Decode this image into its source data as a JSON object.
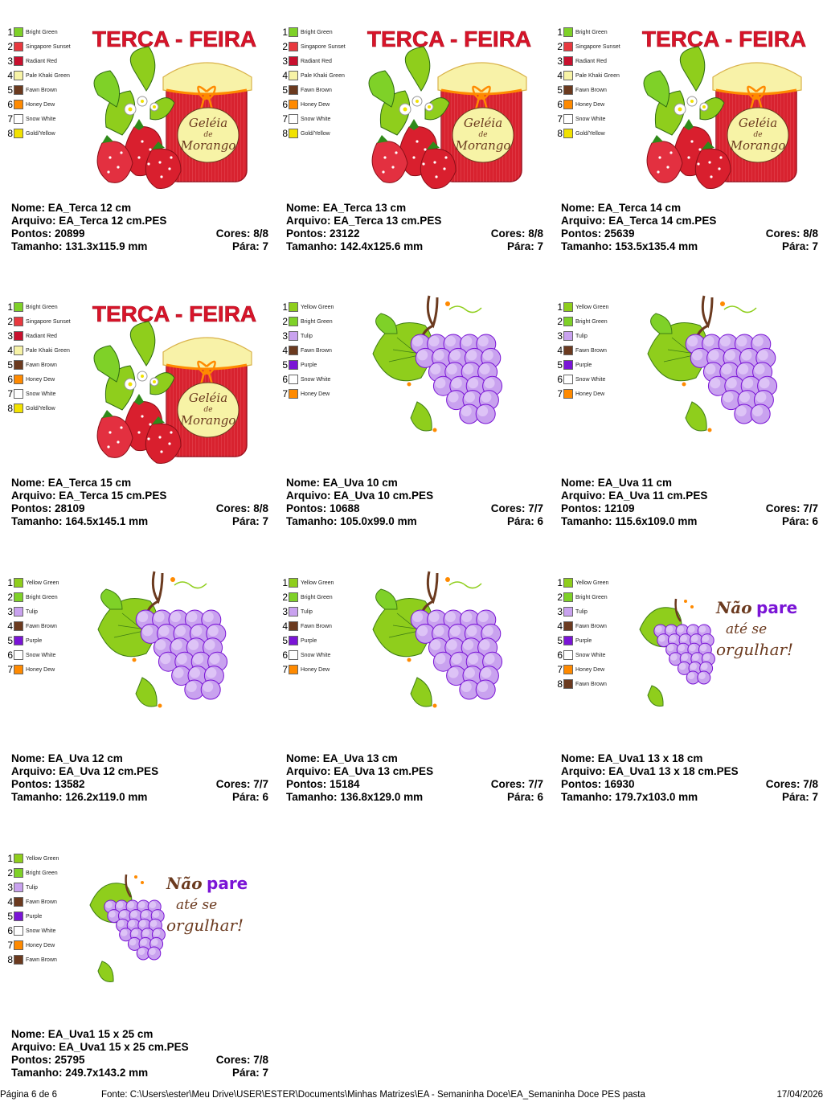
{
  "colors": {
    "Bright Green": "#7fd128",
    "Singapore Sunset": "#e8393f",
    "Radiant Red": "#c8102e",
    "Pale Khaki Green": "#f7f3a6",
    "Fawn Brown": "#6b3a1f",
    "Honey Dew": "#ff8a00",
    "Snow White": "#ffffff",
    "Gold/Yellow": "#f2e200",
    "Yellow Green": "#8fce1c",
    "Tulip": "#c9a2ef",
    "Purple": "#7a14d6"
  },
  "designs": [
    {
      "type": "terca",
      "art_text": {
        "title": "TERÇA - FEIRA",
        "label_line1": "Geléia",
        "label_line2": "de",
        "label_line3": "Morango"
      },
      "threads": [
        "Bright Green",
        "Singapore Sunset",
        "Radiant Red",
        "Pale Khaki Green",
        "Fawn Brown",
        "Honey Dew",
        "Snow White",
        "Gold/Yellow"
      ],
      "nome": "Nome: EA_Terca 12 cm",
      "arquivo": "Arquivo: EA_Terca 12 cm.PES",
      "pontos": "Pontos: 20899",
      "cores": "Cores: 8/8",
      "tamanho": "Tamanho: 131.3x115.9 mm",
      "para": "Pára: 7"
    },
    {
      "type": "terca",
      "art_text": {
        "title": "TERÇA - FEIRA",
        "label_line1": "Geléia",
        "label_line2": "de",
        "label_line3": "Morango"
      },
      "threads": [
        "Bright Green",
        "Singapore Sunset",
        "Radiant Red",
        "Pale Khaki Green",
        "Fawn Brown",
        "Honey Dew",
        "Snow White",
        "Gold/Yellow"
      ],
      "nome": "Nome: EA_Terca 13 cm",
      "arquivo": "Arquivo: EA_Terca 13 cm.PES",
      "pontos": "Pontos: 23122",
      "cores": "Cores: 8/8",
      "tamanho": "Tamanho: 142.4x125.6 mm",
      "para": "Pára: 7"
    },
    {
      "type": "terca",
      "art_text": {
        "title": "TERÇA - FEIRA",
        "label_line1": "Geléia",
        "label_line2": "de",
        "label_line3": "Morango"
      },
      "threads": [
        "Bright Green",
        "Singapore Sunset",
        "Radiant Red",
        "Pale Khaki Green",
        "Fawn Brown",
        "Honey Dew",
        "Snow White",
        "Gold/Yellow"
      ],
      "nome": "Nome: EA_Terca 14 cm",
      "arquivo": "Arquivo: EA_Terca 14 cm.PES",
      "pontos": "Pontos: 25639",
      "cores": "Cores: 8/8",
      "tamanho": "Tamanho: 153.5x135.4 mm",
      "para": "Pára: 7"
    },
    {
      "type": "terca",
      "art_text": {
        "title": "TERÇA - FEIRA",
        "label_line1": "Geléia",
        "label_line2": "de",
        "label_line3": "Morango"
      },
      "threads": [
        "Bright Green",
        "Singapore Sunset",
        "Radiant Red",
        "Pale Khaki Green",
        "Fawn Brown",
        "Honey Dew",
        "Snow White",
        "Gold/Yellow"
      ],
      "nome": "Nome: EA_Terca 15 cm",
      "arquivo": "Arquivo: EA_Terca 15 cm.PES",
      "pontos": "Pontos: 28109",
      "cores": "Cores: 8/8",
      "tamanho": "Tamanho: 164.5x145.1 mm",
      "para": "Pára: 7"
    },
    {
      "type": "uva",
      "threads": [
        "Yellow Green",
        "Bright Green",
        "Tulip",
        "Fawn Brown",
        "Purple",
        "Snow White",
        "Honey Dew"
      ],
      "nome": "Nome: EA_Uva 10 cm",
      "arquivo": "Arquivo: EA_Uva 10 cm.PES",
      "pontos": "Pontos: 10688",
      "cores": "Cores: 7/7",
      "tamanho": "Tamanho: 105.0x99.0 mm",
      "para": "Pára: 6"
    },
    {
      "type": "uva",
      "threads": [
        "Yellow Green",
        "Bright Green",
        "Tulip",
        "Fawn Brown",
        "Purple",
        "Snow White",
        "Honey Dew"
      ],
      "nome": "Nome: EA_Uva 11 cm",
      "arquivo": "Arquivo: EA_Uva 11 cm.PES",
      "pontos": "Pontos: 12109",
      "cores": "Cores: 7/7",
      "tamanho": "Tamanho: 115.6x109.0 mm",
      "para": "Pára: 6"
    },
    {
      "type": "uva",
      "threads": [
        "Yellow Green",
        "Bright Green",
        "Tulip",
        "Fawn Brown",
        "Purple",
        "Snow White",
        "Honey Dew"
      ],
      "nome": "Nome: EA_Uva 12 cm",
      "arquivo": "Arquivo: EA_Uva 12 cm.PES",
      "pontos": "Pontos: 13582",
      "cores": "Cores: 7/7",
      "tamanho": "Tamanho: 126.2x119.0 mm",
      "para": "Pára: 6"
    },
    {
      "type": "uva",
      "threads": [
        "Yellow Green",
        "Bright Green",
        "Tulip",
        "Fawn Brown",
        "Purple",
        "Snow White",
        "Honey Dew"
      ],
      "nome": "Nome: EA_Uva 13 cm",
      "arquivo": "Arquivo: EA_Uva 13 cm.PES",
      "pontos": "Pontos: 15184",
      "cores": "Cores: 7/7",
      "tamanho": "Tamanho: 136.8x129.0 mm",
      "para": "Pára: 6"
    },
    {
      "type": "uva1",
      "art_text": {
        "line1a": "Não",
        "line1b": "pare",
        "line2": "até se",
        "line3": "orgulhar!"
      },
      "threads": [
        "Yellow Green",
        "Bright Green",
        "Tulip",
        "Fawn Brown",
        "Purple",
        "Snow White",
        "Honey Dew",
        "Fawn Brown"
      ],
      "nome": "Nome: EA_Uva1 13 x 18 cm",
      "arquivo": "Arquivo: EA_Uva1 13 x 18 cm.PES",
      "pontos": "Pontos: 16930",
      "cores": "Cores: 7/8",
      "tamanho": "Tamanho: 179.7x103.0 mm",
      "para": "Pára: 7"
    },
    {
      "type": "uva1",
      "art_text": {
        "line1a": "Não",
        "line1b": "pare",
        "line2": "até se",
        "line3": "orgulhar!"
      },
      "threads": [
        "Yellow Green",
        "Bright Green",
        "Tulip",
        "Fawn Brown",
        "Purple",
        "Snow White",
        "Honey Dew",
        "Fawn Brown"
      ],
      "nome": "Nome: EA_Uva1 15 x 25 cm",
      "arquivo": "Arquivo: EA_Uva1 15 x 25 cm.PES",
      "pontos": "Pontos: 25795",
      "cores": "Cores: 7/8",
      "tamanho": "Tamanho: 249.7x143.2 mm",
      "para": "Pára: 7"
    }
  ],
  "footer": {
    "page": "Página 6 de 6",
    "source": "Fonte: C:\\Users\\ester\\Meu Drive\\USER\\ESTER\\Documents\\Minhas Matrizes\\EA - Semaninha Doce\\EA_Semaninha Doce PES pasta",
    "date": "17/04/2026"
  }
}
